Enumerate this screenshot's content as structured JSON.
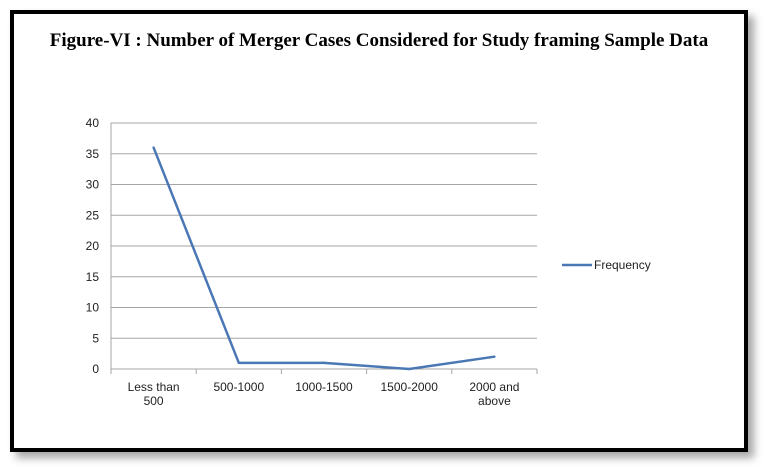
{
  "title": "Figure-VI : Number of Merger Cases Considered for Study framing Sample Data",
  "chart_data": {
    "type": "line",
    "categories": [
      "Less than 500",
      "500-1000",
      "1000-1500",
      "1500-2000",
      "2000 and above"
    ],
    "category_lines": [
      [
        "Less than",
        "500"
      ],
      [
        "500-1000"
      ],
      [
        "1000-1500"
      ],
      [
        "1500-2000"
      ],
      [
        "2000 and",
        "above"
      ]
    ],
    "series": [
      {
        "name": "Frequency",
        "values": [
          36,
          1,
          1,
          0,
          2
        ],
        "color": "#4a78b5"
      }
    ],
    "ylim": [
      0,
      40
    ],
    "yticks": [
      0,
      5,
      10,
      15,
      20,
      25,
      30,
      35,
      40
    ],
    "grid": true,
    "legend": "right"
  }
}
